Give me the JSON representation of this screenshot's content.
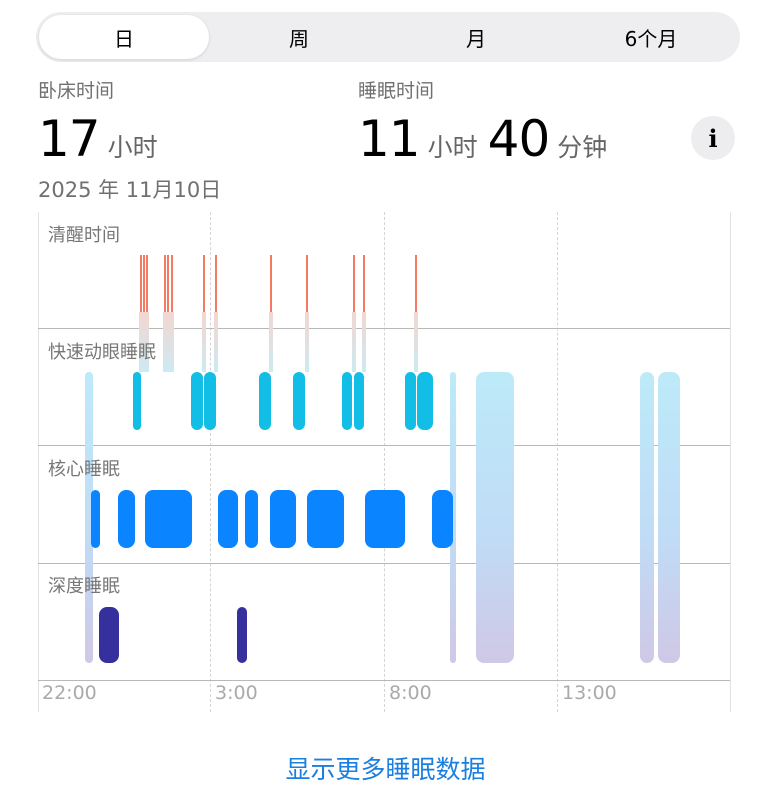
{
  "tabs": [
    {
      "label": "日",
      "selected": true
    },
    {
      "label": "周"
    },
    {
      "label": "月"
    },
    {
      "label": "6个月"
    }
  ],
  "in_bed": {
    "label": "卧床时间",
    "hours": "17",
    "hours_unit": "小时"
  },
  "asleep": {
    "label": "睡眠时间",
    "hours": "11",
    "hours_unit": "小时",
    "minutes": "40",
    "minutes_unit": "分钟"
  },
  "info_icon": "i",
  "date": "2025 年 11月10日",
  "link": "显示更多睡眠数据",
  "colors": {
    "awake": "#f47a63",
    "rem": "#12bde6",
    "core": "#0a84ff",
    "deep": "#35309e",
    "asleep": "#bfeaf8",
    "link": "#1a7fe0"
  },
  "chart_data": {
    "type": "timeline",
    "lanes": [
      "清醒时间",
      "快速动眼睡眠",
      "核心睡眠",
      "深度睡眠"
    ],
    "x_ticks": [
      "22:00",
      "3:00",
      "8:00",
      "13:00"
    ],
    "x_range": [
      "22:00",
      "18:00"
    ],
    "core": [
      [
        "23:32",
        "23:47"
      ],
      [
        "0:19",
        "0:48"
      ],
      [
        "1:06",
        "2:27"
      ],
      [
        "3:12",
        "3:47"
      ],
      [
        "3:59",
        "4:21"
      ],
      [
        "4:42",
        "5:27"
      ],
      [
        "5:46",
        "6:51"
      ],
      [
        "7:27",
        "8:36"
      ],
      [
        "9:23",
        "10:00"
      ]
    ],
    "rem": [
      [
        "0:45",
        "0:59"
      ],
      [
        "2:25",
        "2:46"
      ],
      [
        "2:48",
        "3:09"
      ],
      [
        "4:23",
        "4:44"
      ],
      [
        "5:22",
        "5:43"
      ],
      [
        "6:47",
        "7:04"
      ],
      [
        "7:08",
        "7:25"
      ],
      [
        "8:36",
        "8:55"
      ],
      [
        "8:57",
        "9:25"
      ]
    ],
    "deep": [
      [
        "23:46",
        "0:20"
      ],
      [
        "3:45",
        "4:02"
      ]
    ],
    "awake": [
      "0:57",
      "1:02",
      "1:07",
      "1:38",
      "1:44",
      "1:51",
      "2:46",
      "3:07",
      "4:42",
      "5:45",
      "7:06",
      "7:24",
      "8:54"
    ],
    "asleep_unspecified": [
      [
        "23:21",
        "23:35"
      ],
      [
        "9:54",
        "10:05"
      ],
      [
        "10:39",
        "11:45"
      ],
      [
        "15:24",
        "15:48"
      ],
      [
        "15:55",
        "16:33"
      ]
    ]
  }
}
